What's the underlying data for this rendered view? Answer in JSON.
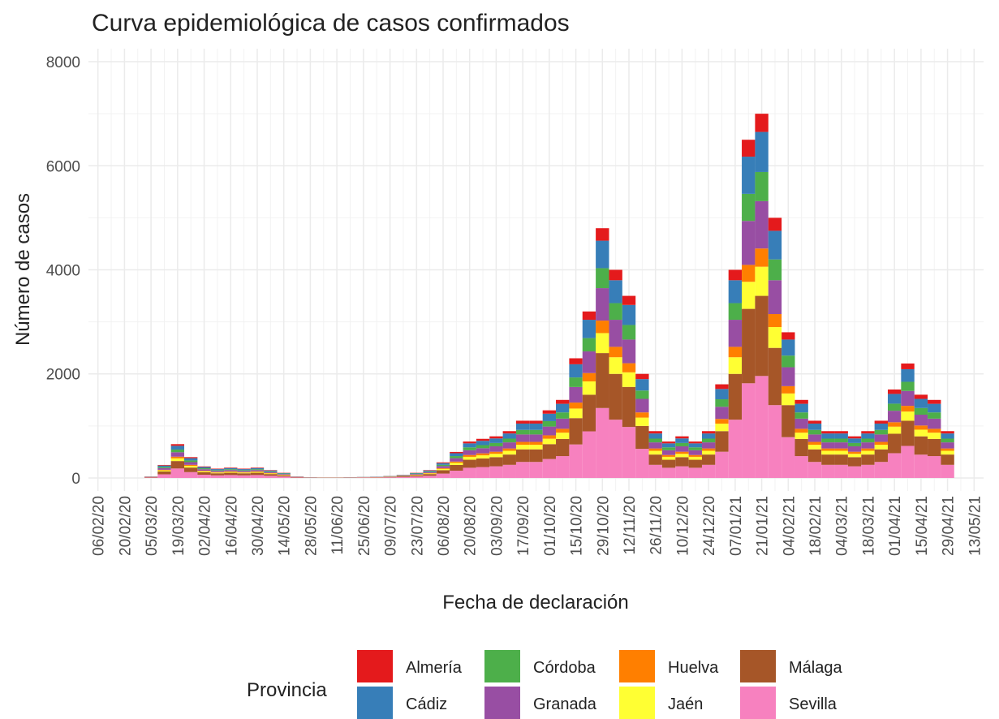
{
  "chart_data": {
    "type": "stacked-bar",
    "title": "Curva epidemiológica de casos confirmados",
    "x_label": "Fecha de declaración",
    "y_label": "Número de casos",
    "legend_title": "Provincia",
    "grid": true,
    "xlim": [
      "01/02/20",
      "18/05/21"
    ],
    "xticks": [
      "06/02/20",
      "20/02/20",
      "05/03/20",
      "19/03/20",
      "02/04/20",
      "16/04/20",
      "30/04/20",
      "14/05/20",
      "28/05/20",
      "11/06/20",
      "25/06/20",
      "09/07/20",
      "23/07/20",
      "06/08/20",
      "20/08/20",
      "03/09/20",
      "17/09/20",
      "01/10/20",
      "15/10/20",
      "29/10/20",
      "12/11/20",
      "26/11/20",
      "10/12/20",
      "24/12/20",
      "07/01/21",
      "21/01/21",
      "04/02/21",
      "18/02/21",
      "04/03/21",
      "18/03/21",
      "01/04/21",
      "15/04/21",
      "29/04/21",
      "13/05/21"
    ],
    "ylim": [
      -250,
      8250
    ],
    "yticks": [
      0,
      2000,
      4000,
      6000,
      8000
    ],
    "x": [
      "05/03/20",
      "12/03/20",
      "19/03/20",
      "26/03/20",
      "02/04/20",
      "09/04/20",
      "16/04/20",
      "23/04/20",
      "30/04/20",
      "07/05/20",
      "14/05/20",
      "21/05/20",
      "28/05/20",
      "04/06/20",
      "11/06/20",
      "18/06/20",
      "25/06/20",
      "02/07/20",
      "09/07/20",
      "16/07/20",
      "23/07/20",
      "30/07/20",
      "06/08/20",
      "13/08/20",
      "20/08/20",
      "27/08/20",
      "03/09/20",
      "10/09/20",
      "17/09/20",
      "24/09/20",
      "01/10/20",
      "08/10/20",
      "15/10/20",
      "22/10/20",
      "29/10/20",
      "05/11/20",
      "12/11/20",
      "19/11/20",
      "26/11/20",
      "03/12/20",
      "10/12/20",
      "17/12/20",
      "24/12/20",
      "31/12/20",
      "07/01/21",
      "14/01/21",
      "21/01/21",
      "28/01/21",
      "04/02/21",
      "11/02/21",
      "18/02/21",
      "25/02/21",
      "04/03/21",
      "11/03/21",
      "18/03/21",
      "25/03/21",
      "01/04/21",
      "08/04/21",
      "15/04/21",
      "22/04/21",
      "29/04/21"
    ],
    "series": [
      {
        "name": "Almería",
        "color": "#e41a1c",
        "values": [
          2,
          12,
          32,
          20,
          11,
          9,
          10,
          9,
          10,
          8,
          5,
          2,
          1,
          1,
          1,
          1,
          1,
          1,
          2,
          3,
          5,
          8,
          15,
          25,
          35,
          38,
          40,
          45,
          55,
          55,
          65,
          75,
          115,
          160,
          240,
          200,
          175,
          100,
          45,
          35,
          40,
          35,
          45,
          90,
          200,
          325,
          350,
          250,
          140,
          75,
          55,
          45,
          45,
          40,
          45,
          55,
          85,
          110,
          80,
          75,
          45
        ]
      },
      {
        "name": "Cádiz",
        "color": "#377eb8",
        "values": [
          3,
          28,
          72,
          44,
          24,
          20,
          22,
          20,
          22,
          17,
          11,
          3,
          2,
          1,
          1,
          2,
          2,
          3,
          4,
          7,
          11,
          17,
          33,
          55,
          77,
          83,
          88,
          99,
          121,
          121,
          143,
          165,
          253,
          352,
          528,
          440,
          385,
          220,
          99,
          77,
          88,
          77,
          99,
          198,
          440,
          715,
          770,
          550,
          308,
          165,
          121,
          99,
          99,
          88,
          99,
          121,
          187,
          242,
          176,
          165,
          99
        ]
      },
      {
        "name": "Córdoba",
        "color": "#4daf4a",
        "values": [
          2,
          20,
          52,
          32,
          18,
          14,
          16,
          14,
          16,
          12,
          8,
          2,
          1,
          1,
          1,
          1,
          2,
          2,
          3,
          5,
          8,
          12,
          24,
          40,
          56,
          60,
          64,
          72,
          88,
          88,
          104,
          120,
          184,
          256,
          384,
          320,
          280,
          160,
          72,
          56,
          64,
          56,
          72,
          144,
          320,
          520,
          560,
          400,
          224,
          120,
          88,
          72,
          72,
          64,
          72,
          88,
          136,
          176,
          128,
          120,
          72
        ]
      },
      {
        "name": "Granada",
        "color": "#984ea3",
        "values": [
          4,
          33,
          85,
          52,
          29,
          23,
          26,
          23,
          26,
          20,
          13,
          4,
          2,
          1,
          1,
          2,
          3,
          3,
          5,
          8,
          13,
          20,
          39,
          65,
          91,
          98,
          104,
          117,
          143,
          143,
          169,
          195,
          299,
          416,
          624,
          520,
          455,
          260,
          117,
          91,
          104,
          91,
          117,
          234,
          520,
          845,
          910,
          650,
          364,
          195,
          143,
          117,
          117,
          104,
          117,
          143,
          221,
          286,
          208,
          195,
          117
        ]
      },
      {
        "name": "Huelva",
        "color": "#ff7f00",
        "values": [
          2,
          12,
          32,
          20,
          11,
          9,
          10,
          9,
          10,
          8,
          5,
          2,
          1,
          1,
          1,
          1,
          1,
          1,
          2,
          3,
          5,
          8,
          15,
          25,
          35,
          38,
          40,
          45,
          55,
          55,
          65,
          75,
          115,
          160,
          240,
          200,
          175,
          100,
          45,
          35,
          40,
          35,
          45,
          90,
          200,
          325,
          350,
          250,
          140,
          75,
          55,
          45,
          45,
          40,
          45,
          55,
          85,
          110,
          80,
          75,
          45
        ]
      },
      {
        "name": "Jaén",
        "color": "#ffff33",
        "values": [
          2,
          20,
          52,
          32,
          18,
          14,
          16,
          14,
          16,
          12,
          8,
          2,
          1,
          1,
          1,
          1,
          2,
          2,
          3,
          5,
          8,
          12,
          24,
          40,
          56,
          60,
          64,
          72,
          88,
          88,
          104,
          120,
          184,
          256,
          384,
          320,
          280,
          160,
          72,
          56,
          64,
          56,
          72,
          144,
          320,
          520,
          560,
          400,
          224,
          120,
          88,
          72,
          72,
          64,
          72,
          88,
          136,
          176,
          128,
          120,
          72
        ]
      },
      {
        "name": "Málaga",
        "color": "#a65628",
        "values": [
          7,
          55,
          143,
          88,
          48,
          40,
          44,
          40,
          44,
          33,
          22,
          7,
          3,
          2,
          2,
          3,
          4,
          6,
          9,
          13,
          22,
          33,
          66,
          110,
          154,
          165,
          176,
          198,
          242,
          242,
          286,
          330,
          506,
          704,
          1056,
          880,
          770,
          440,
          198,
          154,
          176,
          154,
          198,
          396,
          880,
          1430,
          1540,
          1100,
          616,
          330,
          242,
          198,
          198,
          176,
          198,
          242,
          374,
          484,
          352,
          330,
          198
        ]
      },
      {
        "name": "Sevilla",
        "color": "#f781bf",
        "values": [
          8,
          70,
          182,
          112,
          62,
          50,
          56,
          50,
          56,
          42,
          28,
          8,
          4,
          3,
          3,
          4,
          6,
          7,
          11,
          17,
          28,
          42,
          84,
          140,
          196,
          210,
          224,
          252,
          308,
          308,
          364,
          420,
          644,
          896,
          1344,
          1120,
          980,
          560,
          252,
          196,
          224,
          196,
          252,
          504,
          1120,
          1820,
          1960,
          1400,
          784,
          420,
          308,
          252,
          252,
          224,
          252,
          308,
          476,
          616,
          448,
          420,
          252
        ]
      }
    ]
  }
}
